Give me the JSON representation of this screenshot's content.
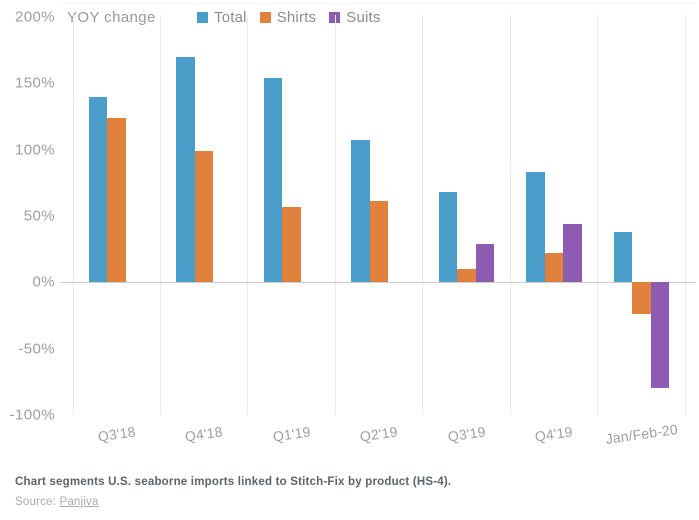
{
  "header": {
    "axis_title": "YOY change"
  },
  "chart_data": {
    "type": "bar",
    "title": "YOY change",
    "categories": [
      "Q3'18",
      "Q4'18",
      "Q1'19",
      "Q2'19",
      "Q3'19",
      "Q4'19",
      "Jan/Feb-20"
    ],
    "series": [
      {
        "name": "Total",
        "color": "#4a9cc9",
        "values": [
          140,
          170,
          154,
          107,
          68,
          83,
          38
        ]
      },
      {
        "name": "Shirts",
        "color": "#e0813e",
        "values": [
          124,
          99,
          57,
          61,
          10,
          22,
          -24
        ]
      },
      {
        "name": "Suits",
        "color": "#8d5bb1",
        "values": [
          null,
          null,
          null,
          null,
          29,
          44,
          -80
        ]
      }
    ],
    "ylabel": "YOY change (%)",
    "ylim": [
      -100,
      200
    ],
    "yticks": [
      200,
      150,
      100,
      50,
      0,
      -50,
      -100
    ],
    "ytick_labels": [
      "200%",
      "150%",
      "100%",
      "50%",
      "0%",
      "-50%",
      "-100%"
    ],
    "grid": "vertical category separators + zero line, horizontal gridlines off",
    "legend_position": "top"
  },
  "caption": {
    "text": "Chart segments U.S. seaborne imports linked to Stitch-Fix by product (HS-4).",
    "source_label": "Source:",
    "source_link": "Panjiva"
  }
}
